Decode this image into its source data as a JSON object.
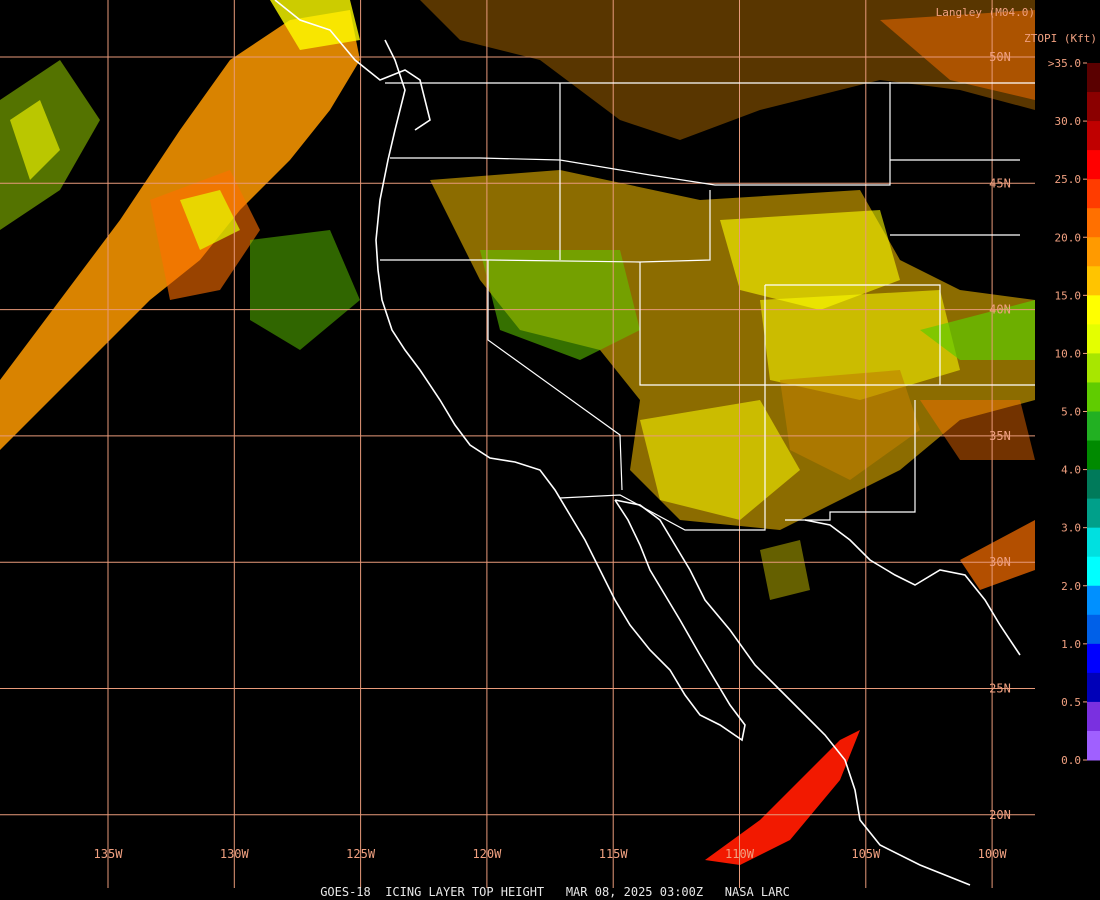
{
  "header": {
    "source": "Langley (M04.0)",
    "product": "ZTOPI (Kft)"
  },
  "colorbar": {
    "labels": [
      ">35.0",
      "30.0",
      "25.0",
      "20.0",
      "15.0",
      "10.0",
      "5.0",
      "4.0",
      "3.0",
      "2.0",
      "1.0",
      "0.5",
      "0.0"
    ],
    "colors": [
      "#5a0000",
      "#8b0000",
      "#c00000",
      "#ff0000",
      "#ff3c00",
      "#ff7000",
      "#ff9a00",
      "#ffc400",
      "#ffff00",
      "#e4ff00",
      "#a8e600",
      "#60cc00",
      "#22b022",
      "#008a00",
      "#007a5a",
      "#00a08a",
      "#00e0e0",
      "#00ffff",
      "#0090ff",
      "#0060e8",
      "#0000ff",
      "#0000b8",
      "#7a30e0",
      "#a060ff"
    ]
  },
  "grid": {
    "longitudes": [
      "135W",
      "130W",
      "125W",
      "120W",
      "115W",
      "110W",
      "105W",
      "100W"
    ],
    "latitudes": [
      "50N",
      "45N",
      "40N",
      "35N",
      "30N",
      "25N",
      "20N"
    ]
  },
  "footer": "GOES-18  ICING LAYER TOP HEIGHT   MAR 08, 2025 03:00Z   NASA LARC"
}
